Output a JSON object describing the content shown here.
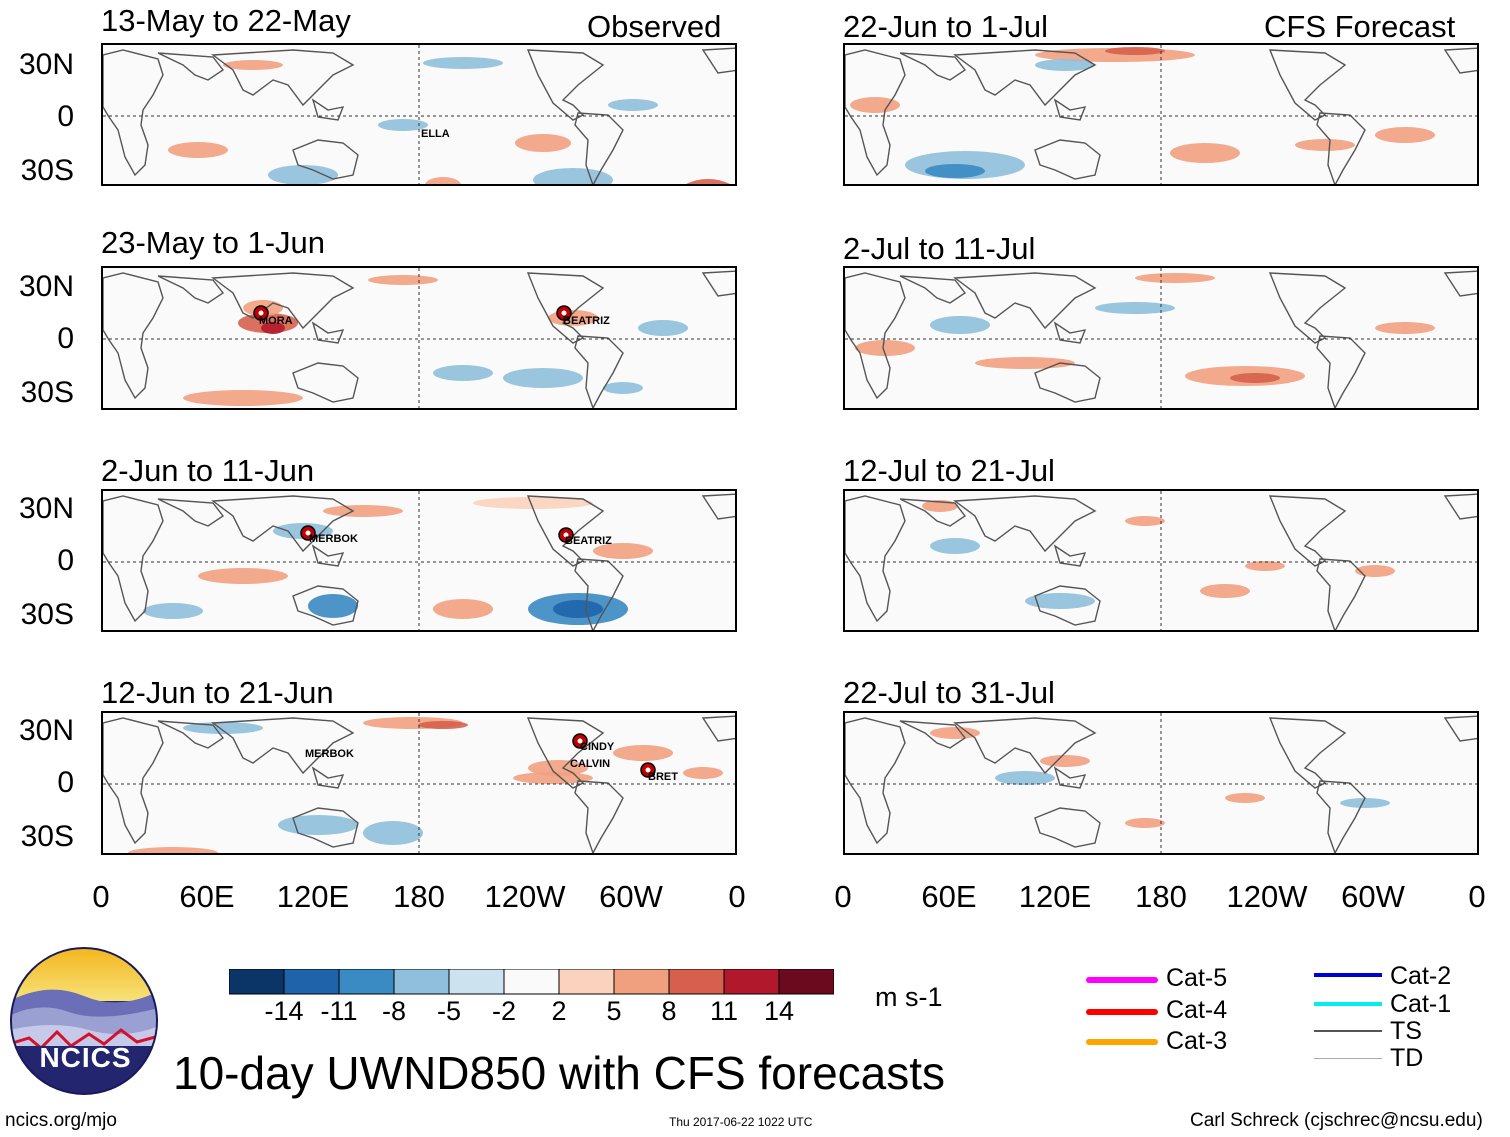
{
  "labels": {
    "observed": "Observed",
    "forecast": "CFS Forecast",
    "lat": [
      "30N",
      "0",
      "30S"
    ],
    "lon": [
      "0",
      "60E",
      "120E",
      "180",
      "120W",
      "60W",
      "0"
    ]
  },
  "observed_panels": [
    {
      "title": "13-May to 22-May",
      "storms": [
        "ELLA"
      ]
    },
    {
      "title": "23-May to 1-Jun",
      "storms": [
        "MORA",
        "BEATRIZ"
      ]
    },
    {
      "title": "2-Jun to 11-Jun",
      "storms": [
        "MERBOK",
        "BEATRIZ"
      ]
    },
    {
      "title": "12-Jun to 21-Jun",
      "storms": [
        "MERBOK",
        "CINDY",
        "CALVIN",
        "BRET"
      ]
    }
  ],
  "forecast_panels": [
    {
      "title": "22-Jun to 1-Jul"
    },
    {
      "title": "2-Jul to 11-Jul"
    },
    {
      "title": "12-Jul to 21-Jul"
    },
    {
      "title": "22-Jul to 31-Jul"
    }
  ],
  "colorbar": {
    "ticks": [
      "-14",
      "-11",
      "-8",
      "-5",
      "-2",
      "2",
      "5",
      "8",
      "11",
      "14"
    ],
    "colors": [
      "#0b3566",
      "#1f64ab",
      "#3a8ac3",
      "#8fbfdc",
      "#cde2ef",
      "#fafafa",
      "#fad2bd",
      "#f1a07f",
      "#d6604d",
      "#b2182b",
      "#6b0a1f"
    ],
    "units": "m s-1"
  },
  "legend": {
    "left": [
      {
        "label": "Cat-5",
        "color": "#ff00ff"
      },
      {
        "label": "Cat-4",
        "color": "#ff0000"
      },
      {
        "label": "Cat-3",
        "color": "#ffa500"
      }
    ],
    "right": [
      {
        "label": "Cat-2",
        "color": "#0000dd"
      },
      {
        "label": "Cat-1",
        "color": "#00eeee"
      },
      {
        "label": "TS",
        "color": "#555555"
      },
      {
        "label": "TD",
        "color": "#aaaaaa"
      }
    ]
  },
  "footer": {
    "logo_text": "NCICS",
    "main_title": "10-day UWND850 with CFS forecasts",
    "url": "ncics.org/mjo",
    "timestamp": "Thu 2017-06-22 1022 UTC",
    "author": "Carl Schreck (cjschrec@ncsu.edu)"
  }
}
